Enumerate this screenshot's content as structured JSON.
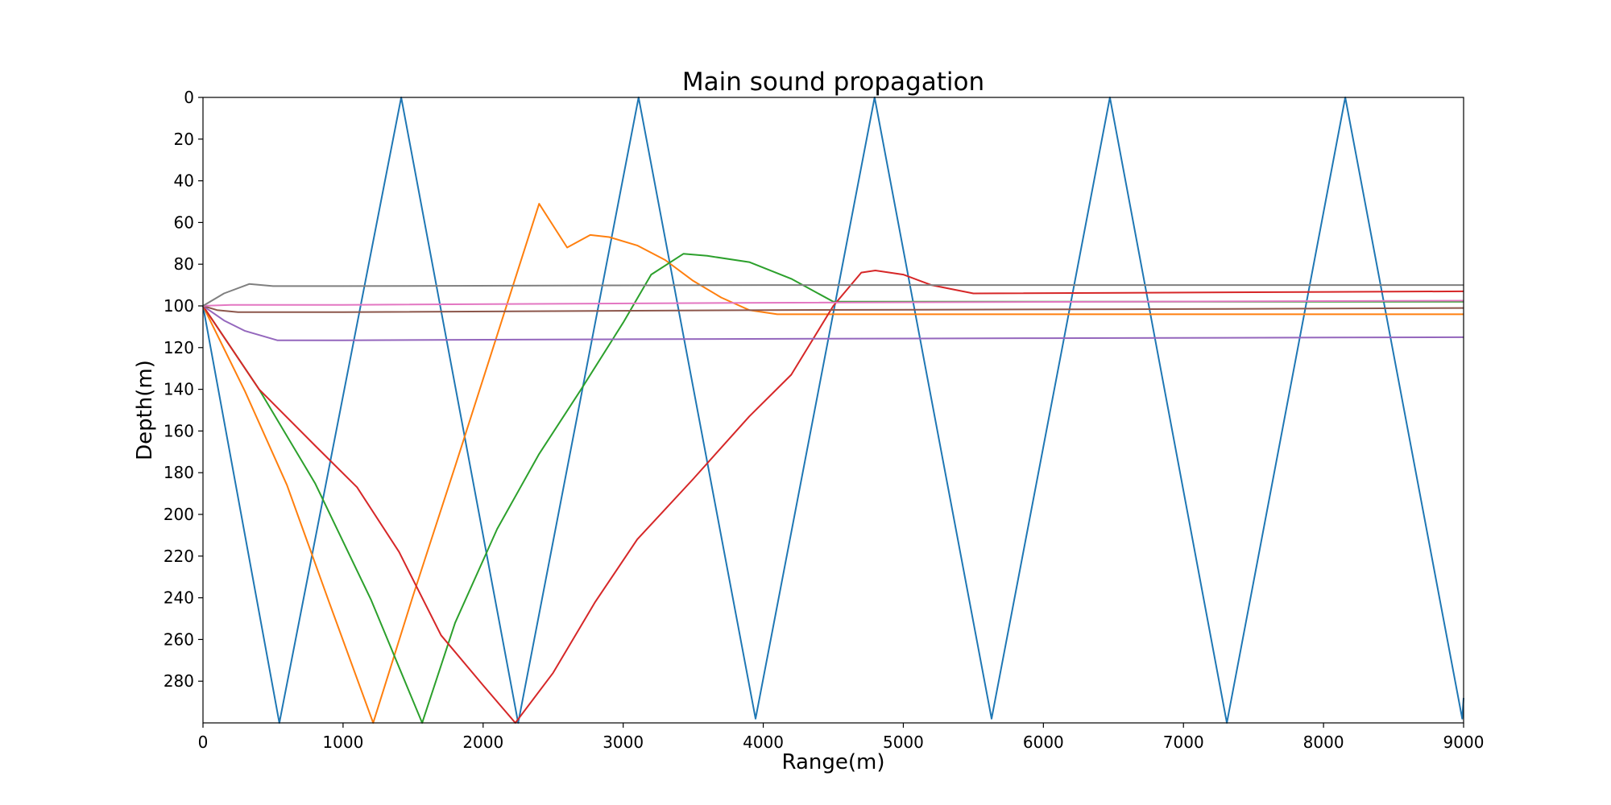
{
  "chart_data": {
    "type": "line",
    "title": "Main sound propagation",
    "xlabel": "Range(m)",
    "ylabel": "Depth(m)",
    "xlim": [
      0,
      9000
    ],
    "ylim": [
      0,
      300
    ],
    "y_inverted": true,
    "grid": false,
    "legend": "none",
    "xticks": [
      0,
      1000,
      2000,
      3000,
      4000,
      5000,
      6000,
      7000,
      8000,
      9000
    ],
    "yticks": [
      0,
      20,
      40,
      60,
      80,
      100,
      120,
      140,
      160,
      180,
      200,
      220,
      240,
      260,
      280
    ],
    "series": [
      {
        "color": "#1f77b4",
        "x": [
          0,
          545,
          1415,
          2250,
          3110,
          3945,
          4795,
          5630,
          6475,
          7310,
          8155,
          8990,
          9000
        ],
        "y": [
          100,
          300,
          0,
          300,
          0,
          298,
          0,
          298,
          0,
          300,
          0,
          298,
          288
        ]
      },
      {
        "color": "#ff7f0e",
        "x": [
          0,
          300,
          600,
          900,
          1215,
          1500,
          1800,
          2100,
          2400,
          2600,
          2765,
          2900,
          3100,
          3300,
          3500,
          3700,
          3900,
          4100,
          4500,
          6000,
          9000
        ],
        "y": [
          100,
          141,
          186,
          242,
          300,
          239,
          177,
          114,
          51,
          72,
          66,
          67,
          71,
          78,
          88,
          96,
          102,
          104,
          104,
          104,
          104
        ]
      },
      {
        "color": "#2ca02c",
        "x": [
          0,
          400,
          800,
          1200,
          1565,
          1800,
          2100,
          2400,
          2700,
          3000,
          3200,
          3430,
          3600,
          3900,
          4200,
          4500,
          5000,
          9000
        ],
        "y": [
          100,
          140,
          185,
          241,
          300,
          252,
          207,
          171,
          140,
          108,
          85,
          75,
          76,
          79,
          87,
          98,
          98,
          98
        ]
      },
      {
        "color": "#d62728",
        "x": [
          0,
          400,
          800,
          1100,
          1400,
          1700,
          2000,
          2230,
          2500,
          2800,
          3100,
          3500,
          3900,
          4200,
          4500,
          4700,
          4800,
          5000,
          5200,
          5500,
          9000
        ],
        "y": [
          100,
          140,
          167,
          187,
          218,
          258,
          282,
          300,
          276,
          242,
          212,
          183,
          153,
          133,
          100,
          84,
          83,
          85,
          90,
          94,
          93
        ]
      },
      {
        "color": "#9467bd",
        "x": [
          0,
          150,
          300,
          530,
          1000,
          3000,
          6000,
          9000
        ],
        "y": [
          100,
          107,
          112,
          116.5,
          116.5,
          116,
          115.5,
          115
        ]
      },
      {
        "color": "#8c564b",
        "x": [
          0,
          100,
          250,
          1000,
          4000,
          7000,
          9000
        ],
        "y": [
          100,
          102,
          103,
          103,
          102,
          101.5,
          101
        ]
      },
      {
        "color": "#e377c2",
        "x": [
          0,
          200,
          1000,
          4000,
          9000
        ],
        "y": [
          100,
          99.5,
          99.5,
          98.5,
          97.5
        ]
      },
      {
        "color": "#7f7f7f",
        "x": [
          0,
          150,
          330,
          500,
          1000,
          4000,
          9000
        ],
        "y": [
          100,
          94,
          89.5,
          90.5,
          90.5,
          90,
          90
        ]
      }
    ]
  }
}
